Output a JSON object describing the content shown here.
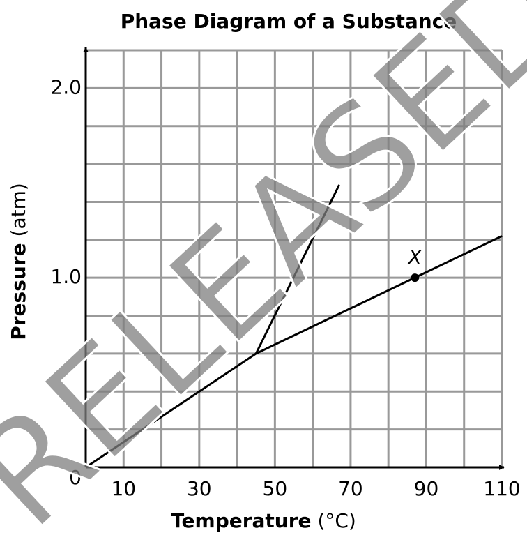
{
  "chart_data": {
    "type": "line",
    "title": "Phase Diagram of a Substance",
    "x_label": {
      "bold": "Temperature",
      "rest": "(°C)"
    },
    "y_label": {
      "bold": "Pressure",
      "rest": "(atm)"
    },
    "xlim": [
      0,
      110
    ],
    "ylim": [
      0,
      2.2
    ],
    "xticks": [
      10,
      30,
      50,
      70,
      90,
      110
    ],
    "yticks": [
      0,
      {
        "value": 1,
        "label": "1.0"
      },
      {
        "value": 2,
        "label": "2.0"
      }
    ],
    "x_gridlines": [
      0,
      10,
      20,
      30,
      40,
      50,
      60,
      70,
      80,
      90,
      100,
      110
    ],
    "y_gridlines": [
      0,
      0.2,
      0.4,
      0.6,
      0.8,
      1.0,
      1.2,
      1.4,
      1.6,
      1.8,
      2.0,
      2.2
    ],
    "grid": true,
    "color": "#000000",
    "lines": [
      {
        "x": [
          0,
          45,
          110
        ],
        "y": [
          0,
          0.6,
          1.22
        ]
      },
      {
        "x": [
          45,
          67
        ],
        "y": [
          0.6,
          1.49
        ]
      }
    ],
    "point": {
      "label": "X",
      "x": 87,
      "y": 1.0
    },
    "watermark": "RELEASED"
  }
}
